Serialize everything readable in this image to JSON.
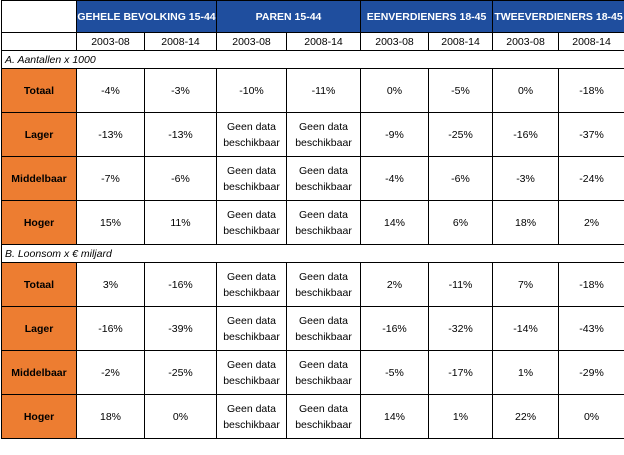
{
  "groups": [
    {
      "label": "GEHELE BEVOLKING 15-44"
    },
    {
      "label": "PAREN 15-44"
    },
    {
      "label": "EENVERDIENERS 18-45"
    },
    {
      "label": "TWEEVERDIENERS 18-45"
    }
  ],
  "periods": [
    "2003-08",
    "2008-14",
    "2003-08",
    "2008-14",
    "2003-08",
    "2008-14",
    "2003-08",
    "2008-14"
  ],
  "no_data": [
    "Geen data",
    "beschikbaar"
  ],
  "sections": [
    {
      "title": "A. Aantallen x 1000",
      "rows": [
        {
          "label": "Totaal",
          "values": [
            "-4%",
            "-3%",
            "-10%",
            "-11%",
            "0%",
            "-5%",
            "0%",
            "-18%"
          ]
        },
        {
          "label": "Lager",
          "values": [
            "-13%",
            "-13%",
            null,
            null,
            "-9%",
            "-25%",
            "-16%",
            "-37%"
          ]
        },
        {
          "label": "Middelbaar",
          "values": [
            "-7%",
            "-6%",
            null,
            null,
            "-4%",
            "-6%",
            "-3%",
            "-24%"
          ]
        },
        {
          "label": "Hoger",
          "values": [
            "15%",
            "11%",
            null,
            null,
            "14%",
            "6%",
            "18%",
            "2%"
          ]
        }
      ]
    },
    {
      "title": "B. Loonsom x € miljard",
      "rows": [
        {
          "label": "Totaal",
          "values": [
            "3%",
            "-16%",
            null,
            null,
            "2%",
            "-11%",
            "7%",
            "-18%"
          ]
        },
        {
          "label": "Lager",
          "values": [
            "-16%",
            "-39%",
            null,
            null,
            "-16%",
            "-32%",
            "-14%",
            "-43%"
          ]
        },
        {
          "label": "Middelbaar",
          "values": [
            "-2%",
            "-25%",
            null,
            null,
            "-5%",
            "-17%",
            "1%",
            "-29%"
          ]
        },
        {
          "label": "Hoger",
          "values": [
            "18%",
            "0%",
            null,
            null,
            "14%",
            "1%",
            "22%",
            "0%"
          ]
        }
      ]
    }
  ]
}
